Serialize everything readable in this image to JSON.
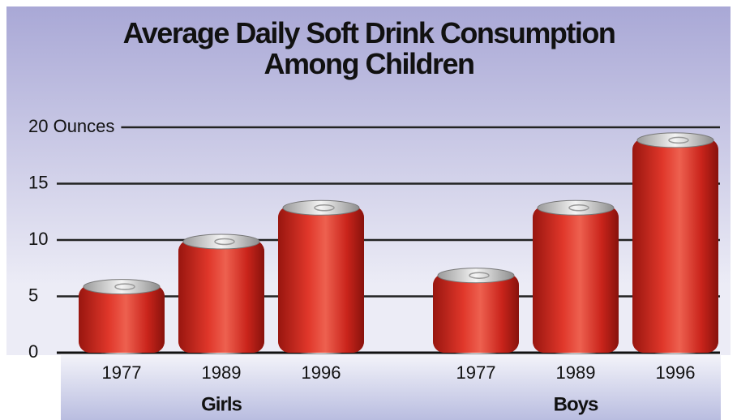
{
  "chart_data": {
    "type": "bar",
    "title": "Average Daily Soft Drink Consumption Among Children",
    "categories": [
      "1977",
      "1989",
      "1996"
    ],
    "series": [
      {
        "name": "Girls",
        "color": "#d42a20",
        "values": [
          6,
          10,
          13
        ]
      },
      {
        "name": "Boys",
        "color": "#d42a20",
        "values": [
          7,
          13,
          19
        ]
      }
    ],
    "ylim": [
      0,
      20
    ],
    "yticks": [
      0,
      5,
      10,
      15,
      {
        "value": 20,
        "label": "20 Ounces"
      }
    ],
    "grid": true
  }
}
